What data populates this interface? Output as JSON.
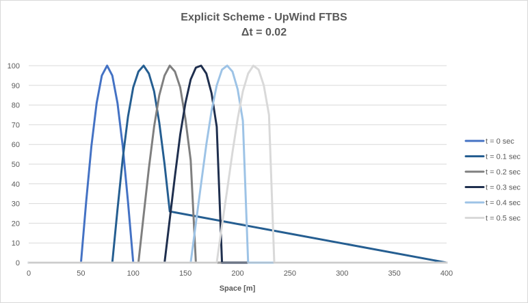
{
  "chart_data": {
    "type": "line",
    "title": "Explicit Scheme - UpWind FTBS",
    "subtitle": "Δt = 0.02",
    "xlabel": "Space [m]",
    "ylabel": "",
    "xlim": [
      0,
      400
    ],
    "ylim": [
      0,
      100
    ],
    "xticks": [
      0,
      50,
      100,
      150,
      200,
      250,
      300,
      350,
      400
    ],
    "yticks": [
      0,
      10,
      20,
      30,
      40,
      50,
      60,
      70,
      80,
      90,
      100
    ],
    "grid": "horizontal",
    "legend_position": "right",
    "series": [
      {
        "name": "t = 0 sec",
        "color": "#4472c4",
        "x": [
          0,
          50,
          55,
          60,
          65,
          70,
          75,
          80,
          85,
          90,
          95,
          100,
          105,
          110,
          400
        ],
        "y": [
          0,
          0,
          31,
          59,
          81,
          95,
          100,
          95,
          81,
          59,
          31,
          0,
          0,
          0,
          0
        ]
      },
      {
        "name": "t = 0.1 sec",
        "color": "#255e91",
        "x": [
          0,
          75,
          80,
          85,
          90,
          95,
          100,
          105,
          110,
          115,
          120,
          125,
          130,
          135,
          400
        ],
        "y": [
          0,
          0,
          0,
          27,
          53,
          74,
          89,
          97,
          100,
          96,
          87,
          71,
          50,
          26,
          0
        ]
      },
      {
        "name": "t = 0.2 sec",
        "color": "#7f7f7f",
        "x": [
          0,
          100,
          105,
          110,
          115,
          120,
          125,
          130,
          135,
          140,
          145,
          150,
          155,
          160,
          400
        ],
        "y": [
          0,
          0,
          0,
          24,
          48,
          69,
          85,
          95,
          100,
          97,
          89,
          73,
          52,
          0,
          0
        ]
      },
      {
        "name": "t = 0.3 sec",
        "color": "#1f2f4e",
        "x": [
          0,
          125,
          130,
          135,
          140,
          145,
          150,
          155,
          160,
          165,
          170,
          175,
          180,
          185,
          400
        ],
        "y": [
          0,
          0,
          0,
          22,
          44,
          65,
          81,
          93,
          99,
          100,
          96,
          86,
          69,
          0,
          0
        ]
      },
      {
        "name": "t = 0.4 sec",
        "color": "#9dc3e6",
        "x": [
          0,
          150,
          155,
          160,
          165,
          170,
          175,
          180,
          185,
          190,
          195,
          200,
          205,
          210,
          400
        ],
        "y": [
          0,
          0,
          0,
          20,
          40,
          60,
          77,
          90,
          98,
          100,
          97,
          88,
          72,
          0,
          0
        ]
      },
      {
        "name": "t = 0.5 sec",
        "color": "#d9d9d9",
        "x": [
          0,
          175,
          180,
          185,
          190,
          195,
          200,
          205,
          210,
          215,
          220,
          225,
          230,
          235,
          400
        ],
        "y": [
          0,
          0,
          0,
          19,
          37,
          56,
          73,
          87,
          96,
          100,
          98,
          90,
          75,
          0,
          0
        ]
      }
    ]
  }
}
